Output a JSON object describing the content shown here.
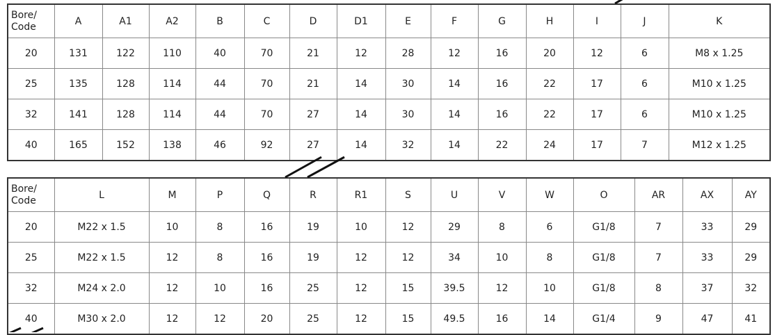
{
  "top_table": {
    "headers": [
      "Bore/\nCode",
      "A",
      "A1",
      "A2",
      "B",
      "C",
      "D",
      "D1",
      "E",
      "F",
      "G",
      "H",
      "I",
      "J",
      "K"
    ],
    "rows": [
      [
        "20",
        "131",
        "122",
        "110",
        "40",
        "70",
        "21",
        "12",
        "28",
        "12",
        "16",
        "20",
        "12",
        "6",
        "M8 x 1.25"
      ],
      [
        "25",
        "135",
        "128",
        "114",
        "44",
        "70",
        "21",
        "14",
        "30",
        "14",
        "16",
        "22",
        "17",
        "6",
        "M10 x 1.25"
      ],
      [
        "32",
        "141",
        "128",
        "114",
        "44",
        "70",
        "27",
        "14",
        "30",
        "14",
        "16",
        "22",
        "17",
        "6",
        "M10 x 1.25"
      ],
      [
        "40",
        "165",
        "152",
        "138",
        "46",
        "92",
        "27",
        "14",
        "32",
        "14",
        "22",
        "24",
        "17",
        "7",
        "M12 x 1.25"
      ]
    ]
  },
  "bottom_table": {
    "headers": [
      "Bore/\nCode",
      "L",
      "M",
      "P",
      "Q",
      "R",
      "R1",
      "S",
      "U",
      "V",
      "W",
      "O",
      "AR",
      "AX",
      "AY"
    ],
    "rows": [
      [
        "20",
        "M22 x 1.5",
        "10",
        "8",
        "16",
        "19",
        "10",
        "12",
        "29",
        "8",
        "6",
        "G1/8",
        "7",
        "33",
        "29"
      ],
      [
        "25",
        "M22 x 1.5",
        "12",
        "8",
        "16",
        "19",
        "12",
        "12",
        "34",
        "10",
        "8",
        "G1/8",
        "7",
        "33",
        "29"
      ],
      [
        "32",
        "M24 x 2.0",
        "12",
        "10",
        "16",
        "25",
        "12",
        "15",
        "39.5",
        "12",
        "10",
        "G1/8",
        "8",
        "37",
        "32"
      ],
      [
        "40",
        "M30 x 2.0",
        "12",
        "12",
        "20",
        "25",
        "12",
        "15",
        "49.5",
        "16",
        "14",
        "G1/4",
        "9",
        "47",
        "41"
      ]
    ]
  }
}
